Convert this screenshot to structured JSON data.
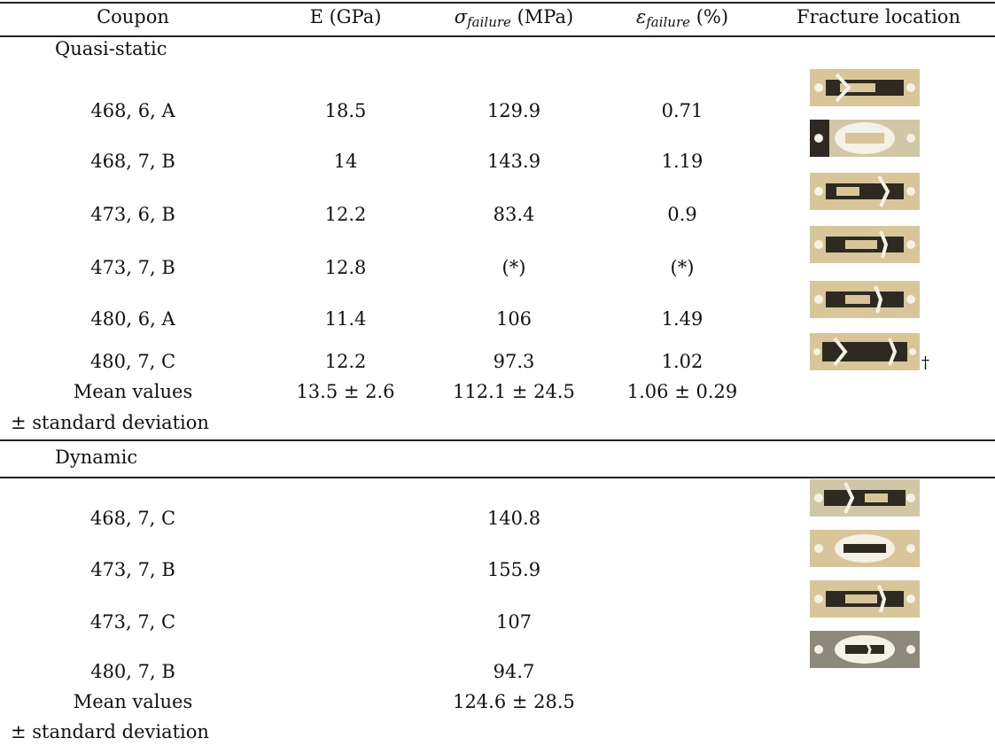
{
  "headers": {
    "coupon": "Coupon",
    "e": "E (GPa)",
    "sigma_sym": "σ",
    "sigma_sub": "failure",
    "sigma_unit": "(MPa)",
    "eps_sym": "ε",
    "eps_sub": "failure",
    "eps_unit": "(%)",
    "fracture": "Fracture location"
  },
  "quasi_static": {
    "label": "Quasi-static",
    "rows": [
      {
        "coupon": "468, 6, A",
        "e": "18.5",
        "sigma": "129.9",
        "eps": "0.71"
      },
      {
        "coupon": "468, 7, B",
        "e": "14",
        "sigma": "143.9",
        "eps": "1.19"
      },
      {
        "coupon": "473, 6, B",
        "e": "12.2",
        "sigma": "83.4",
        "eps": "0.9"
      },
      {
        "coupon": "473, 7, B",
        "e": "12.8",
        "sigma": "(*)",
        "eps": "(*)"
      },
      {
        "coupon": "480, 6, A",
        "e": "11.4",
        "sigma": "106",
        "eps": "1.49"
      },
      {
        "coupon": "480, 7, C",
        "e": "12.2",
        "sigma": "97.3",
        "eps": "1.02"
      }
    ],
    "mean_label": "Mean values",
    "std_label": "± standard deviation",
    "mean_e": "13.5 ± 2.6",
    "mean_sigma": "112.1 ± 24.5",
    "mean_eps": "1.06 ± 0.29",
    "dagger": "†"
  },
  "dynamic": {
    "label": "Dynamic",
    "rows": [
      {
        "coupon": "468, 7, C",
        "sigma": "140.8"
      },
      {
        "coupon": "473, 7, B",
        "sigma": "155.9"
      },
      {
        "coupon": "473, 7, C",
        "sigma": "107"
      },
      {
        "coupon": "480, 7, B",
        "sigma": "94.7"
      }
    ],
    "mean_label": "Mean values",
    "std_label": "± standard deviation",
    "mean_sigma": "124.6 ± 28.5"
  },
  "colors": {
    "coupon_tab": "#d9c59a",
    "coupon_dark": "#2e2a22",
    "coupon_white": "#f4f1e6"
  }
}
